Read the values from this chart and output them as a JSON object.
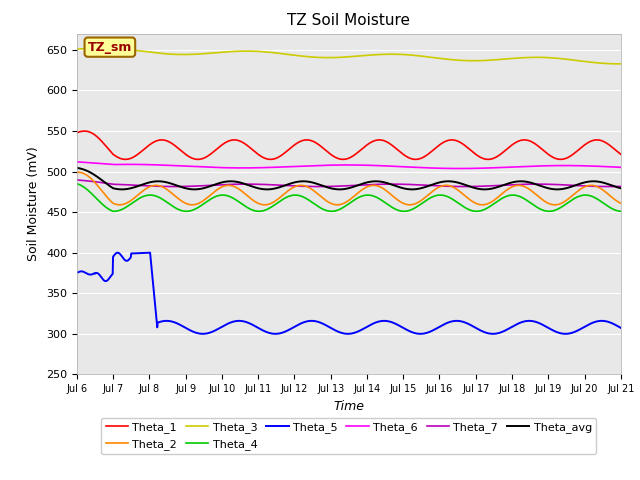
{
  "title": "TZ Soil Moisture",
  "xlabel": "Time",
  "ylabel": "Soil Moisture (mV)",
  "ylim": [
    250,
    670
  ],
  "xlim": [
    0,
    360
  ],
  "x_tick_labels": [
    "Jul 6",
    "Jul 7",
    "Jul 8",
    "Jul 9",
    "Jul 10",
    "Jul 11",
    "Jul 12",
    "Jul 13",
    "Jul 14",
    "Jul 15",
    "Jul 16",
    "Jul 17",
    "Jul 18",
    "Jul 19",
    "Jul 20",
    "Jul 21"
  ],
  "x_tick_positions": [
    0,
    24,
    48,
    72,
    96,
    120,
    144,
    168,
    192,
    216,
    240,
    264,
    288,
    312,
    336,
    360
  ],
  "background_color": "#e8e8e8",
  "label_box_text": "TZ_sm",
  "label_box_color": "#ffff99",
  "label_box_border": "#996600"
}
